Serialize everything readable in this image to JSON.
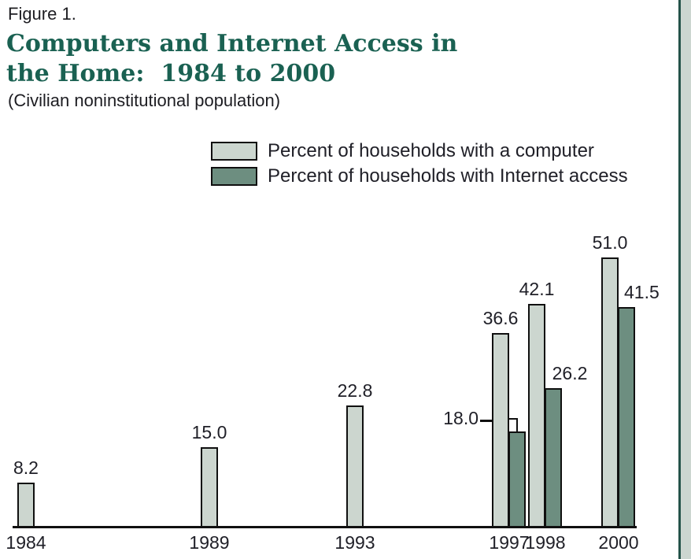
{
  "figure": {
    "label": "Figure 1.",
    "title_line1": "Computers and Internet Access in",
    "title_line2": "the Home:  1984 to 2000",
    "subtitle": "(Civilian noninstitutional population)"
  },
  "legend": {
    "items": [
      {
        "label": "Percent of households with a computer",
        "swatch_color": "#ccd6cf"
      },
      {
        "label": "Percent of households with Internet access",
        "swatch_color": "#6d8e80"
      }
    ]
  },
  "chart_data": {
    "type": "bar",
    "title": "Computers and Internet Access in the Home: 1984 to 2000",
    "subtitle": "(Civilian noninstitutional population)",
    "categories": [
      "1984",
      "1989",
      "1993",
      "1997",
      "1998",
      "2000"
    ],
    "series": [
      {
        "name": "Percent of households with a computer",
        "color": "#ccd6cf",
        "values": [
          8.2,
          15.0,
          22.8,
          36.6,
          42.1,
          51.0
        ],
        "labels": [
          "8.2",
          "15.0",
          "22.8",
          "36.6",
          "42.1",
          "51.0"
        ]
      },
      {
        "name": "Percent of households with Internet access",
        "color": "#6d8e80",
        "values": [
          null,
          null,
          null,
          18.0,
          26.2,
          41.5
        ],
        "labels": [
          null,
          null,
          null,
          "18.0",
          "26.2",
          "41.5"
        ],
        "label_modes": [
          null,
          null,
          null,
          "callout-left",
          "above-right",
          "right-of-bar"
        ]
      }
    ],
    "xlabel": "",
    "ylabel": "",
    "ylim": [
      0,
      55
    ],
    "grid": false,
    "y_axis_shown": false,
    "legend_position": "top"
  },
  "colors": {
    "title": "#1a6152",
    "bar_light": "#ccd6cf",
    "bar_dark": "#6d8e80",
    "outline": "#101010",
    "text": "#202028",
    "right_band_fill": "#ccd6d0",
    "right_band_line": "#245349"
  }
}
